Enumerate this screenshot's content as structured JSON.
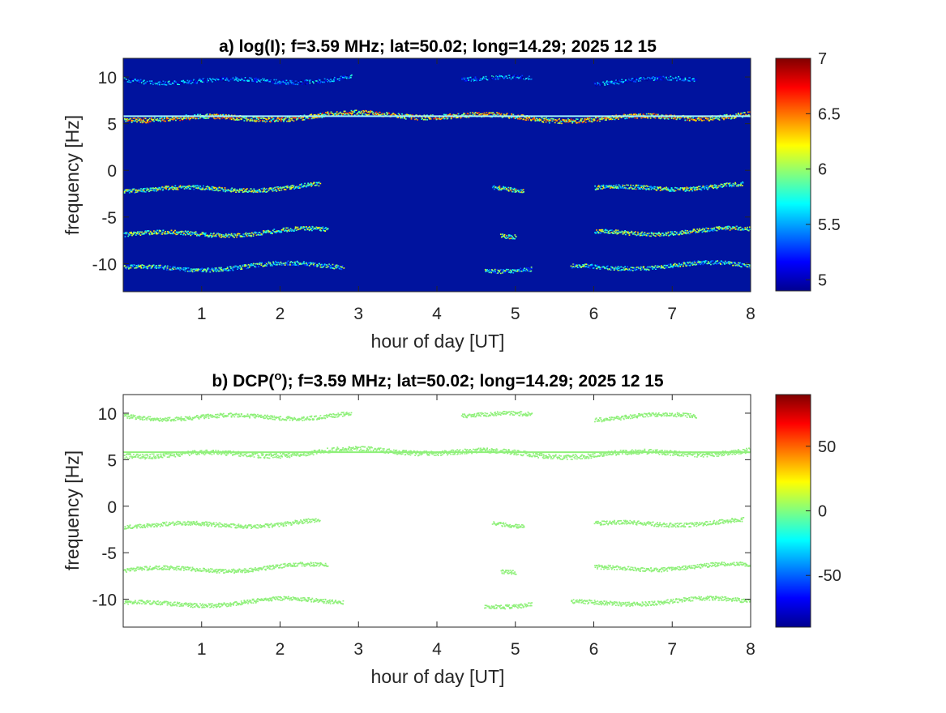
{
  "chart_data": [
    {
      "type": "heatmap",
      "title": "a) log(I); f=3.59 MHz;  lat=50.02; long=14.29; 2025 12 15",
      "xlabel": "hour of day [UT]",
      "ylabel": "frequency [Hz]",
      "xlim": [
        0,
        8
      ],
      "ylim": [
        -13,
        12
      ],
      "xticks": [
        1,
        2,
        3,
        4,
        5,
        6,
        7,
        8
      ],
      "yticks": [
        10,
        5,
        0,
        -5,
        -10
      ],
      "background_color": "#00139e",
      "colormap": "jet",
      "colorbar": {
        "range": [
          4.9,
          7
        ],
        "ticks": [
          7,
          6.5,
          6,
          5.5,
          5
        ]
      },
      "bands": [
        {
          "center_hz": 9.8,
          "segments": [
            [
              0,
              2.9
            ],
            [
              4.3,
              5.2
            ],
            [
              6.0,
              7.3
            ]
          ],
          "level": 5.8
        },
        {
          "center_hz": 5.8,
          "segments": [
            [
              0,
              8.0
            ]
          ],
          "level": 6.7
        },
        {
          "center_hz": -1.8,
          "segments": [
            [
              0,
              2.5
            ],
            [
              4.7,
              5.1
            ],
            [
              6.0,
              7.9
            ]
          ],
          "level": 6.4
        },
        {
          "center_hz": -6.6,
          "segments": [
            [
              0,
              2.6
            ],
            [
              4.8,
              5.0
            ],
            [
              6.0,
              8.0
            ]
          ],
          "level": 6.4
        },
        {
          "center_hz": -10.3,
          "segments": [
            [
              0,
              2.8
            ],
            [
              4.6,
              5.2
            ],
            [
              5.7,
              8.0
            ]
          ],
          "level": 6.2
        }
      ]
    },
    {
      "type": "heatmap",
      "title": "b) DCP(°); f=3.59 MHz;  lat=50.02; long=14.29; 2025 12 15",
      "title_parts": {
        "prefix": "b) DCP(",
        "sup": "o",
        "suffix": "); f=3.59 MHz;  lat=50.02; long=14.29; 2025 12 15"
      },
      "xlabel": "hour of day [UT]",
      "ylabel": "frequency [Hz]",
      "xlim": [
        0,
        8
      ],
      "ylim": [
        -13,
        12
      ],
      "xticks": [
        1,
        2,
        3,
        4,
        5,
        6,
        7,
        8
      ],
      "yticks": [
        10,
        5,
        0,
        -5,
        -10
      ],
      "background_color": "#ffffff",
      "point_color": "#8ff07a",
      "colormap": "jet",
      "colorbar": {
        "range": [
          -90,
          90
        ],
        "ticks": [
          50,
          0,
          -50
        ]
      },
      "bands": [
        {
          "center_hz": 9.8,
          "segments": [
            [
              0,
              2.9
            ],
            [
              4.3,
              5.2
            ],
            [
              6.0,
              7.3
            ]
          ],
          "level": 0
        },
        {
          "center_hz": 5.8,
          "segments": [
            [
              0,
              8.0
            ]
          ],
          "level": 0
        },
        {
          "center_hz": -1.8,
          "segments": [
            [
              0,
              2.5
            ],
            [
              4.7,
              5.1
            ],
            [
              6.0,
              7.9
            ]
          ],
          "level": 0
        },
        {
          "center_hz": -6.6,
          "segments": [
            [
              0,
              2.6
            ],
            [
              4.8,
              5.0
            ],
            [
              6.0,
              8.0
            ]
          ],
          "level": 0
        },
        {
          "center_hz": -10.3,
          "segments": [
            [
              0,
              2.8
            ],
            [
              4.6,
              5.2
            ],
            [
              5.7,
              8.0
            ]
          ],
          "level": 0
        }
      ]
    }
  ]
}
